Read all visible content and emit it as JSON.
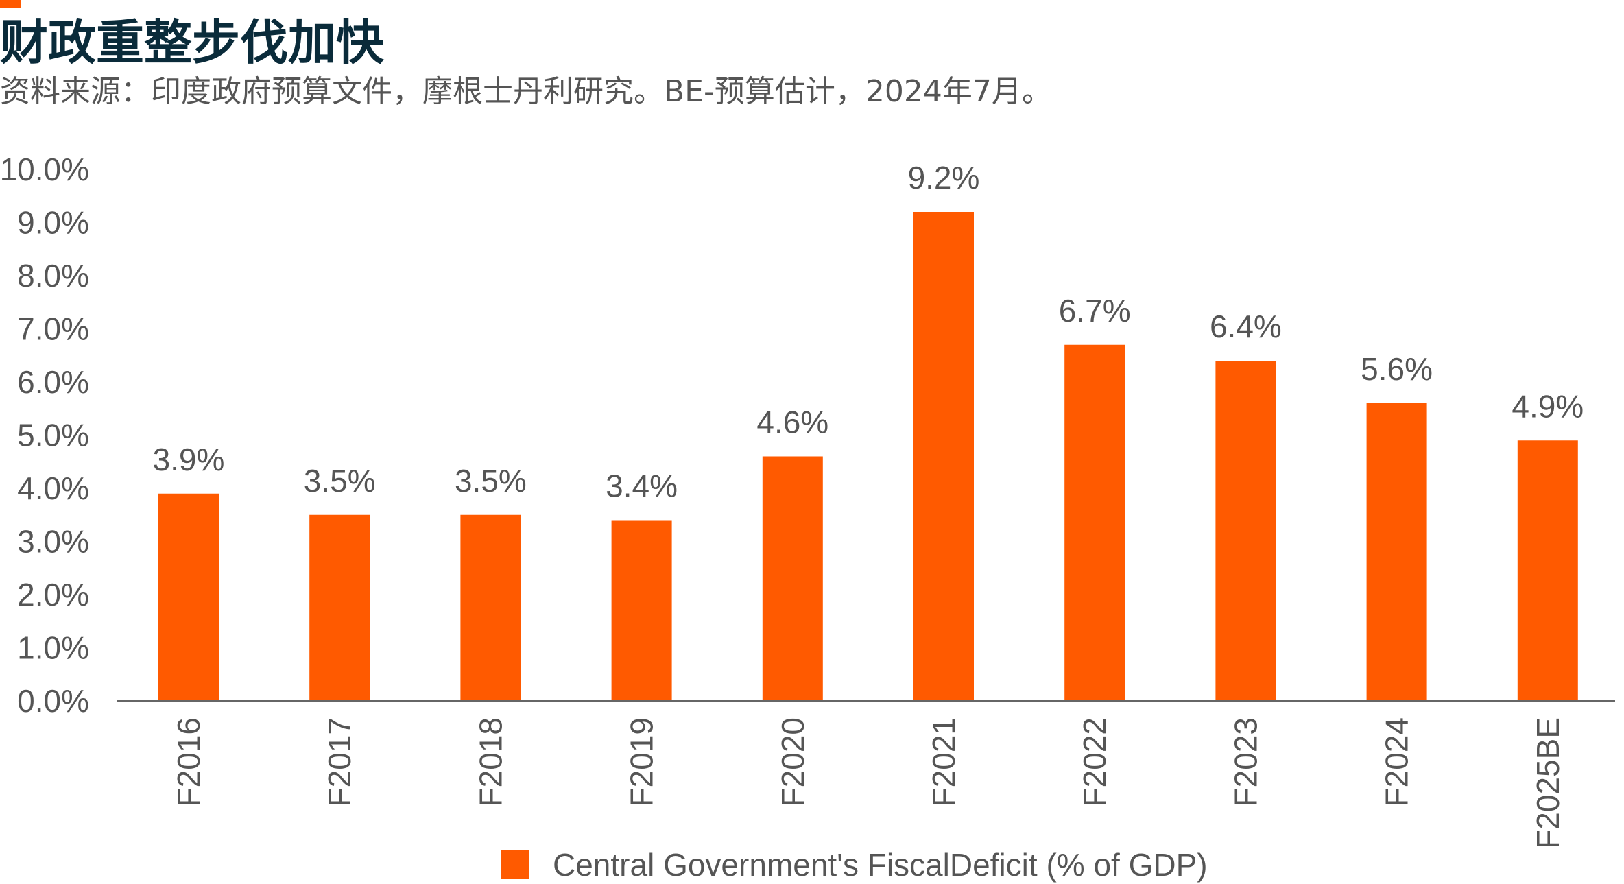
{
  "title": "财政重整步伐加快",
  "subtitle": "资料来源：印度政府预算文件，摩根士丹利研究。BE-预算估计，2024年7月。",
  "colors": {
    "bar": "#ff5a00",
    "title": "#0a2b3a",
    "text": "#555555",
    "axis": "#666666"
  },
  "chart_data": {
    "type": "bar",
    "categories": [
      "F2016",
      "F2017",
      "F2018",
      "F2019",
      "F2020",
      "F2021",
      "F2022",
      "F2023",
      "F2024",
      "F2025BE"
    ],
    "series": [
      {
        "name": "Central Government's FiscalDeficit (% of GDP)",
        "values": [
          3.9,
          3.5,
          3.5,
          3.4,
          4.6,
          9.2,
          6.7,
          6.4,
          5.6,
          4.9
        ]
      }
    ],
    "data_labels": [
      "3.9%",
      "3.5%",
      "3.5%",
      "3.4%",
      "4.6%",
      "9.2%",
      "6.7%",
      "6.4%",
      "5.6%",
      "4.9%"
    ],
    "yticks": [
      "0.0%",
      "1.0%",
      "2.0%",
      "3.0%",
      "4.0%",
      "5.0%",
      "6.0%",
      "7.0%",
      "8.0%",
      "9.0%",
      "10.0%"
    ],
    "ylim": [
      0,
      10
    ],
    "grid": false,
    "legend_position": "bottom"
  }
}
